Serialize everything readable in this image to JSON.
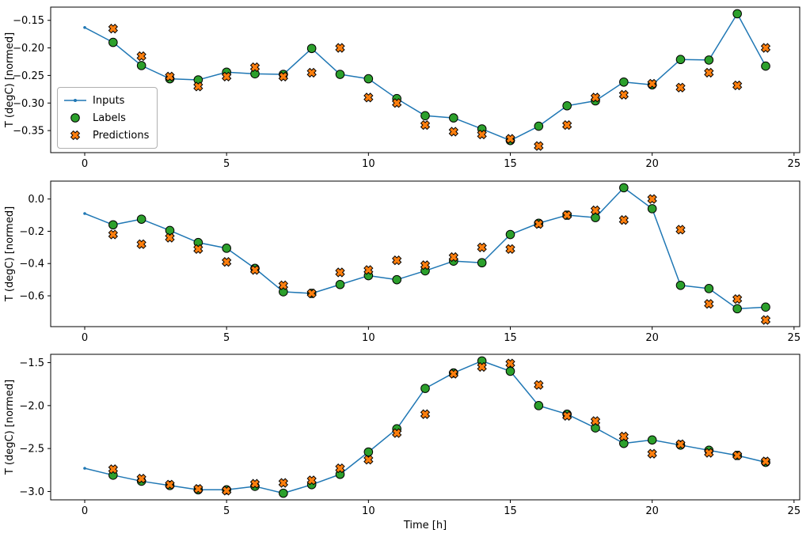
{
  "figure": {
    "xlabel": "Time [h]",
    "ylabel": "T (degC) [normed]"
  },
  "legend": {
    "items": [
      {
        "label": "Inputs"
      },
      {
        "label": "Labels"
      },
      {
        "label": "Predictions"
      }
    ]
  },
  "colors": {
    "inputs": "#1f77b4",
    "labels": "#2ca02c",
    "predictions": "#ff7f0e",
    "marker_edge": "#000000",
    "axis": "#000000"
  },
  "chart_data": [
    {
      "type": "line",
      "title": "",
      "xlabel": "",
      "ylabel": "T (degC) [normed]",
      "xlim": [
        -1.2,
        25.2
      ],
      "ylim": [
        -0.39,
        -0.126
      ],
      "grid": false,
      "legend_position": "center left",
      "xticks": {
        "values": [
          0,
          5,
          10,
          15,
          20,
          25
        ],
        "labels": [
          "0",
          "5",
          "10",
          "15",
          "20",
          "25"
        ]
      },
      "yticks": {
        "values": [
          -0.15,
          -0.2,
          -0.25,
          -0.3,
          -0.35
        ],
        "labels": [
          "−0.15",
          "−0.20",
          "−0.25",
          "−0.30",
          "−0.35"
        ]
      },
      "series": [
        {
          "name": "Inputs",
          "type": "line",
          "marker": "dot",
          "x": [
            0,
            1,
            2,
            3,
            4,
            5,
            6,
            7,
            8,
            9,
            10,
            11,
            12,
            13,
            14,
            15,
            16,
            17,
            18,
            19,
            20,
            21,
            22,
            23,
            24
          ],
          "y": [
            -0.163,
            -0.19,
            -0.232,
            -0.256,
            -0.258,
            -0.244,
            -0.247,
            -0.248,
            -0.201,
            -0.248,
            -0.256,
            -0.292,
            -0.323,
            -0.327,
            -0.347,
            -0.368,
            -0.342,
            -0.305,
            -0.296,
            -0.262,
            -0.267,
            -0.221,
            -0.222,
            -0.138,
            -0.233
          ]
        },
        {
          "name": "Labels",
          "type": "scatter",
          "marker": "circle",
          "x": [
            1,
            2,
            3,
            4,
            5,
            6,
            7,
            8,
            9,
            10,
            11,
            12,
            13,
            14,
            15,
            16,
            17,
            18,
            19,
            20,
            21,
            22,
            23,
            24
          ],
          "y": [
            -0.19,
            -0.232,
            -0.256,
            -0.258,
            -0.244,
            -0.247,
            -0.248,
            -0.201,
            -0.248,
            -0.256,
            -0.292,
            -0.323,
            -0.327,
            -0.347,
            -0.368,
            -0.342,
            -0.305,
            -0.296,
            -0.262,
            -0.267,
            -0.221,
            -0.222,
            -0.138,
            -0.233
          ]
        },
        {
          "name": "Predictions",
          "type": "scatter",
          "marker": "X",
          "x": [
            1,
            2,
            3,
            4,
            5,
            6,
            7,
            8,
            9,
            10,
            11,
            12,
            13,
            14,
            15,
            16,
            17,
            18,
            19,
            20,
            21,
            22,
            23,
            24
          ],
          "y": [
            -0.165,
            -0.215,
            -0.252,
            -0.27,
            -0.252,
            -0.235,
            -0.252,
            -0.245,
            -0.2,
            -0.29,
            -0.3,
            -0.34,
            -0.352,
            -0.357,
            -0.365,
            -0.378,
            -0.34,
            -0.29,
            -0.285,
            -0.265,
            -0.272,
            -0.245,
            -0.268,
            -0.2
          ]
        }
      ]
    },
    {
      "type": "line",
      "title": "",
      "xlabel": "",
      "ylabel": "T (degC) [normed]",
      "xlim": [
        -1.2,
        25.2
      ],
      "ylim": [
        -0.791,
        0.111
      ],
      "grid": false,
      "xticks": {
        "values": [
          0,
          5,
          10,
          15,
          20,
          25
        ],
        "labels": [
          "0",
          "5",
          "10",
          "15",
          "20",
          "25"
        ]
      },
      "yticks": {
        "values": [
          0.0,
          -0.2,
          -0.4,
          -0.6
        ],
        "labels": [
          "0.0",
          "−0.2",
          "−0.4",
          "−0.6"
        ]
      },
      "series": [
        {
          "name": "Inputs",
          "type": "line",
          "marker": "dot",
          "x": [
            0,
            1,
            2,
            3,
            4,
            5,
            6,
            7,
            8,
            9,
            10,
            11,
            12,
            13,
            14,
            15,
            16,
            17,
            18,
            19,
            20,
            21,
            22,
            23,
            24
          ],
          "y": [
            -0.09,
            -0.16,
            -0.125,
            -0.195,
            -0.27,
            -0.305,
            -0.43,
            -0.575,
            -0.585,
            -0.53,
            -0.475,
            -0.5,
            -0.445,
            -0.385,
            -0.395,
            -0.22,
            -0.15,
            -0.1,
            -0.115,
            0.07,
            -0.06,
            -0.535,
            -0.555,
            -0.68,
            -0.67
          ]
        },
        {
          "name": "Labels",
          "type": "scatter",
          "marker": "circle",
          "x": [
            1,
            2,
            3,
            4,
            5,
            6,
            7,
            8,
            9,
            10,
            11,
            12,
            13,
            14,
            15,
            16,
            17,
            18,
            19,
            20,
            21,
            22,
            23,
            24
          ],
          "y": [
            -0.16,
            -0.125,
            -0.195,
            -0.27,
            -0.305,
            -0.43,
            -0.575,
            -0.585,
            -0.53,
            -0.475,
            -0.5,
            -0.445,
            -0.385,
            -0.395,
            -0.22,
            -0.15,
            -0.1,
            -0.115,
            0.07,
            -0.06,
            -0.535,
            -0.555,
            -0.68,
            -0.67
          ]
        },
        {
          "name": "Predictions",
          "type": "scatter",
          "marker": "X",
          "x": [
            1,
            2,
            3,
            4,
            5,
            6,
            7,
            8,
            9,
            10,
            11,
            12,
            13,
            14,
            15,
            16,
            17,
            18,
            19,
            20,
            21,
            22,
            23,
            24
          ],
          "y": [
            -0.22,
            -0.28,
            -0.24,
            -0.31,
            -0.39,
            -0.44,
            -0.535,
            -0.585,
            -0.455,
            -0.44,
            -0.38,
            -0.41,
            -0.36,
            -0.3,
            -0.31,
            -0.155,
            -0.1,
            -0.07,
            -0.13,
            0.0,
            -0.19,
            -0.65,
            -0.62,
            -0.75
          ]
        }
      ]
    },
    {
      "type": "line",
      "title": "",
      "xlabel": "Time [h]",
      "ylabel": "T (degC) [normed]",
      "xlim": [
        -1.2,
        25.2
      ],
      "ylim": [
        -3.097,
        -1.403
      ],
      "grid": false,
      "xticks": {
        "values": [
          0,
          5,
          10,
          15,
          20,
          25
        ],
        "labels": [
          "0",
          "5",
          "10",
          "15",
          "20",
          "25"
        ]
      },
      "yticks": {
        "values": [
          -1.5,
          -2.0,
          -2.5,
          -3.0
        ],
        "labels": [
          "−1.5",
          "−2.0",
          "−2.5",
          "−3.0"
        ]
      },
      "series": [
        {
          "name": "Inputs",
          "type": "line",
          "marker": "dot",
          "x": [
            0,
            1,
            2,
            3,
            4,
            5,
            6,
            7,
            8,
            9,
            10,
            11,
            12,
            13,
            14,
            15,
            16,
            17,
            18,
            19,
            20,
            21,
            22,
            23,
            24
          ],
          "y": [
            -2.73,
            -2.81,
            -2.88,
            -2.93,
            -2.98,
            -2.98,
            -2.94,
            -3.02,
            -2.92,
            -2.8,
            -2.54,
            -2.27,
            -1.8,
            -1.62,
            -1.48,
            -1.6,
            -2.0,
            -2.1,
            -2.26,
            -2.44,
            -2.4,
            -2.46,
            -2.52,
            -2.58,
            -2.66
          ]
        },
        {
          "name": "Labels",
          "type": "scatter",
          "marker": "circle",
          "x": [
            1,
            2,
            3,
            4,
            5,
            6,
            7,
            8,
            9,
            10,
            11,
            12,
            13,
            14,
            15,
            16,
            17,
            18,
            19,
            20,
            21,
            22,
            23,
            24
          ],
          "y": [
            -2.81,
            -2.88,
            -2.93,
            -2.98,
            -2.98,
            -2.94,
            -3.02,
            -2.92,
            -2.8,
            -2.54,
            -2.27,
            -1.8,
            -1.62,
            -1.48,
            -1.6,
            -2.0,
            -2.1,
            -2.26,
            -2.44,
            -2.4,
            -2.46,
            -2.52,
            -2.58,
            -2.66
          ]
        },
        {
          "name": "Predictions",
          "type": "scatter",
          "marker": "X",
          "x": [
            1,
            2,
            3,
            4,
            5,
            6,
            7,
            8,
            9,
            10,
            11,
            12,
            13,
            14,
            15,
            16,
            17,
            18,
            19,
            20,
            21,
            22,
            23,
            24
          ],
          "y": [
            -2.74,
            -2.85,
            -2.92,
            -2.97,
            -2.99,
            -2.91,
            -2.9,
            -2.87,
            -2.73,
            -2.63,
            -2.32,
            -2.1,
            -1.63,
            -1.55,
            -1.51,
            -1.76,
            -2.12,
            -2.18,
            -2.36,
            -2.56,
            -2.45,
            -2.55,
            -2.58,
            -2.65
          ]
        }
      ]
    }
  ]
}
